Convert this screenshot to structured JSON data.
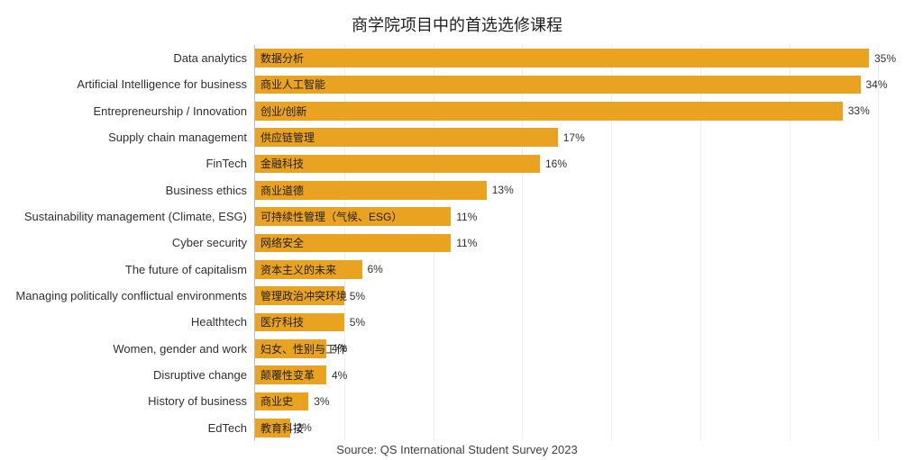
{
  "chart": {
    "type": "bar-horizontal",
    "title": "商学院项目中的首选选修课程",
    "source": "Source: QS International Student Survey 2023",
    "xmax": 36,
    "xtick_step": 5,
    "background_color": "#ffffff",
    "grid_color": "#eeeeee",
    "axis_color": "#bdbdbd",
    "bar_color": "#eaa221",
    "label_color": "#303030",
    "inbar_text_color": "#202020",
    "title_fontsize": 18,
    "label_fontsize": 13,
    "inbar_fontsize": 12,
    "value_fontsize": 12,
    "bar_height_ratio": 0.7,
    "items": [
      {
        "en": "Data analytics",
        "zh": "数据分析",
        "pct": 35,
        "val": "35%"
      },
      {
        "en": "Artificial Intelligence for business",
        "zh": "商业人工智能",
        "pct": 34,
        "val": "34%"
      },
      {
        "en": "Entrepreneurship / Innovation",
        "zh": "创业/创新",
        "pct": 33,
        "val": "33%"
      },
      {
        "en": "Supply chain management",
        "zh": "供应链管理",
        "pct": 17,
        "val": "17%"
      },
      {
        "en": "FinTech",
        "zh": "金融科技",
        "pct": 16,
        "val": "16%"
      },
      {
        "en": "Business ethics",
        "zh": "商业道德",
        "pct": 13,
        "val": "13%"
      },
      {
        "en": "Sustainability management (Climate, ESG)",
        "zh": "可持续性管理（气候、ESG）",
        "pct": 11,
        "val": "11%"
      },
      {
        "en": "Cyber security",
        "zh": "网络安全",
        "pct": 11,
        "val": "11%"
      },
      {
        "en": "The future of capitalism",
        "zh": "资本主义的未来",
        "pct": 6,
        "val": "6%"
      },
      {
        "en": "Managing politically conflictual environments",
        "zh": "管理政治冲突环境",
        "pct": 5,
        "val": "5%"
      },
      {
        "en": "Healthtech",
        "zh": "医疗科技",
        "pct": 5,
        "val": "5%"
      },
      {
        "en": "Women, gender and work",
        "zh": "妇女、性别与工作",
        "pct": 4,
        "val": "4%"
      },
      {
        "en": "Disruptive change",
        "zh": "颠覆性变革",
        "pct": 4,
        "val": "4%"
      },
      {
        "en": "History of business",
        "zh": "商业史",
        "pct": 3,
        "val": "3%"
      },
      {
        "en": "EdTech",
        "zh": "教育科技",
        "pct": 2,
        "val": "2%"
      }
    ]
  }
}
